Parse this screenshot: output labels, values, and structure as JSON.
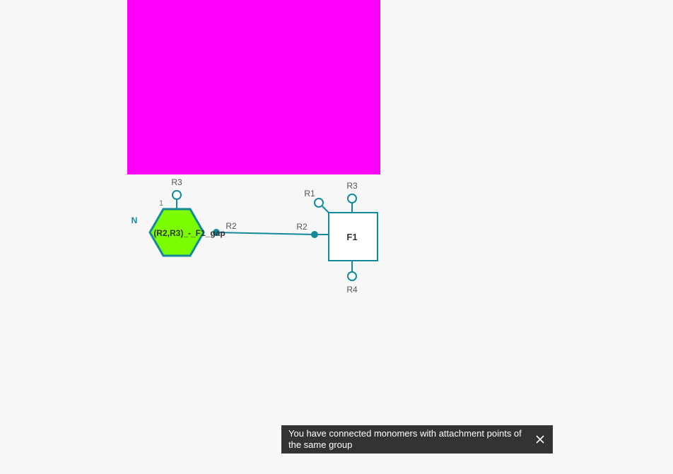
{
  "canvas": {
    "highlight_color": "#ff00ff",
    "monomers": {
      "hexagon": {
        "label": "(R2,R3)_-_F1_gap",
        "index": "1",
        "fill": "#7cfc00",
        "stroke": "#13899b",
        "attachment_r3": "R3",
        "attachment_r2": "R2"
      },
      "square": {
        "label": "F1",
        "stroke": "#13899b",
        "attachment_r1": "R1",
        "attachment_r2": "R2",
        "attachment_r3": "R3",
        "attachment_r4": "R4"
      }
    },
    "terminal_label": "N"
  },
  "toast": {
    "message": "You have connected monomers with attachment points of the same group",
    "close_icon": "close-icon"
  }
}
